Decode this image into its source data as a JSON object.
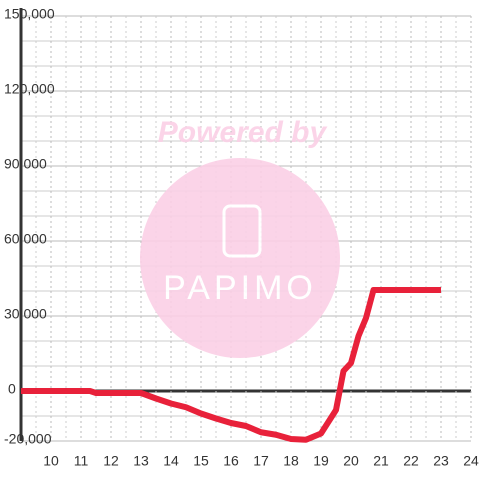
{
  "chart_data": {
    "type": "line",
    "watermark": {
      "caption": "Powered by",
      "brand": "PAPIMO"
    },
    "xlim": [
      9,
      24
    ],
    "ylim": [
      -20000,
      150000
    ],
    "xticks": [
      10,
      11,
      12,
      13,
      14,
      15,
      16,
      17,
      18,
      19,
      20,
      21,
      22,
      23,
      24
    ],
    "xminor": [
      9.5,
      10.5,
      11.5,
      12.5,
      13.5,
      14.5,
      15.5,
      16.5,
      17.5,
      18.5,
      19.5,
      20.5,
      21.5,
      22.5,
      23.5
    ],
    "yticks": [
      {
        "value": -20000,
        "label": "-20,000"
      },
      0,
      {
        "value": 30000,
        "label": "30,000"
      },
      {
        "value": 60000,
        "label": "60,000"
      },
      {
        "value": 90000,
        "label": "90,000"
      },
      {
        "value": 120000,
        "label": "120,000"
      },
      {
        "value": 150000,
        "label": "150,000"
      }
    ],
    "ygrid": [
      -10000,
      10000,
      20000,
      40000,
      50000,
      70000,
      80000,
      100000,
      110000,
      130000,
      140000
    ],
    "grid": true,
    "series": [
      {
        "color": "#e8213a",
        "x": [
          9,
          11.3,
          11.5,
          13,
          13.5,
          14,
          14.5,
          15,
          15.5,
          16,
          16.5,
          17,
          17.5,
          18,
          18.5,
          19,
          19.5,
          19.75,
          20,
          20.25,
          20.5,
          20.75,
          23
        ],
        "values": [
          0,
          0,
          -800,
          -800,
          -3000,
          -5000,
          -6500,
          -9000,
          -11000,
          -12800,
          -14000,
          -16500,
          -17500,
          -19200,
          -19500,
          -17000,
          -7600,
          8000,
          11200,
          22000,
          29200,
          40400,
          40400
        ]
      }
    ]
  }
}
